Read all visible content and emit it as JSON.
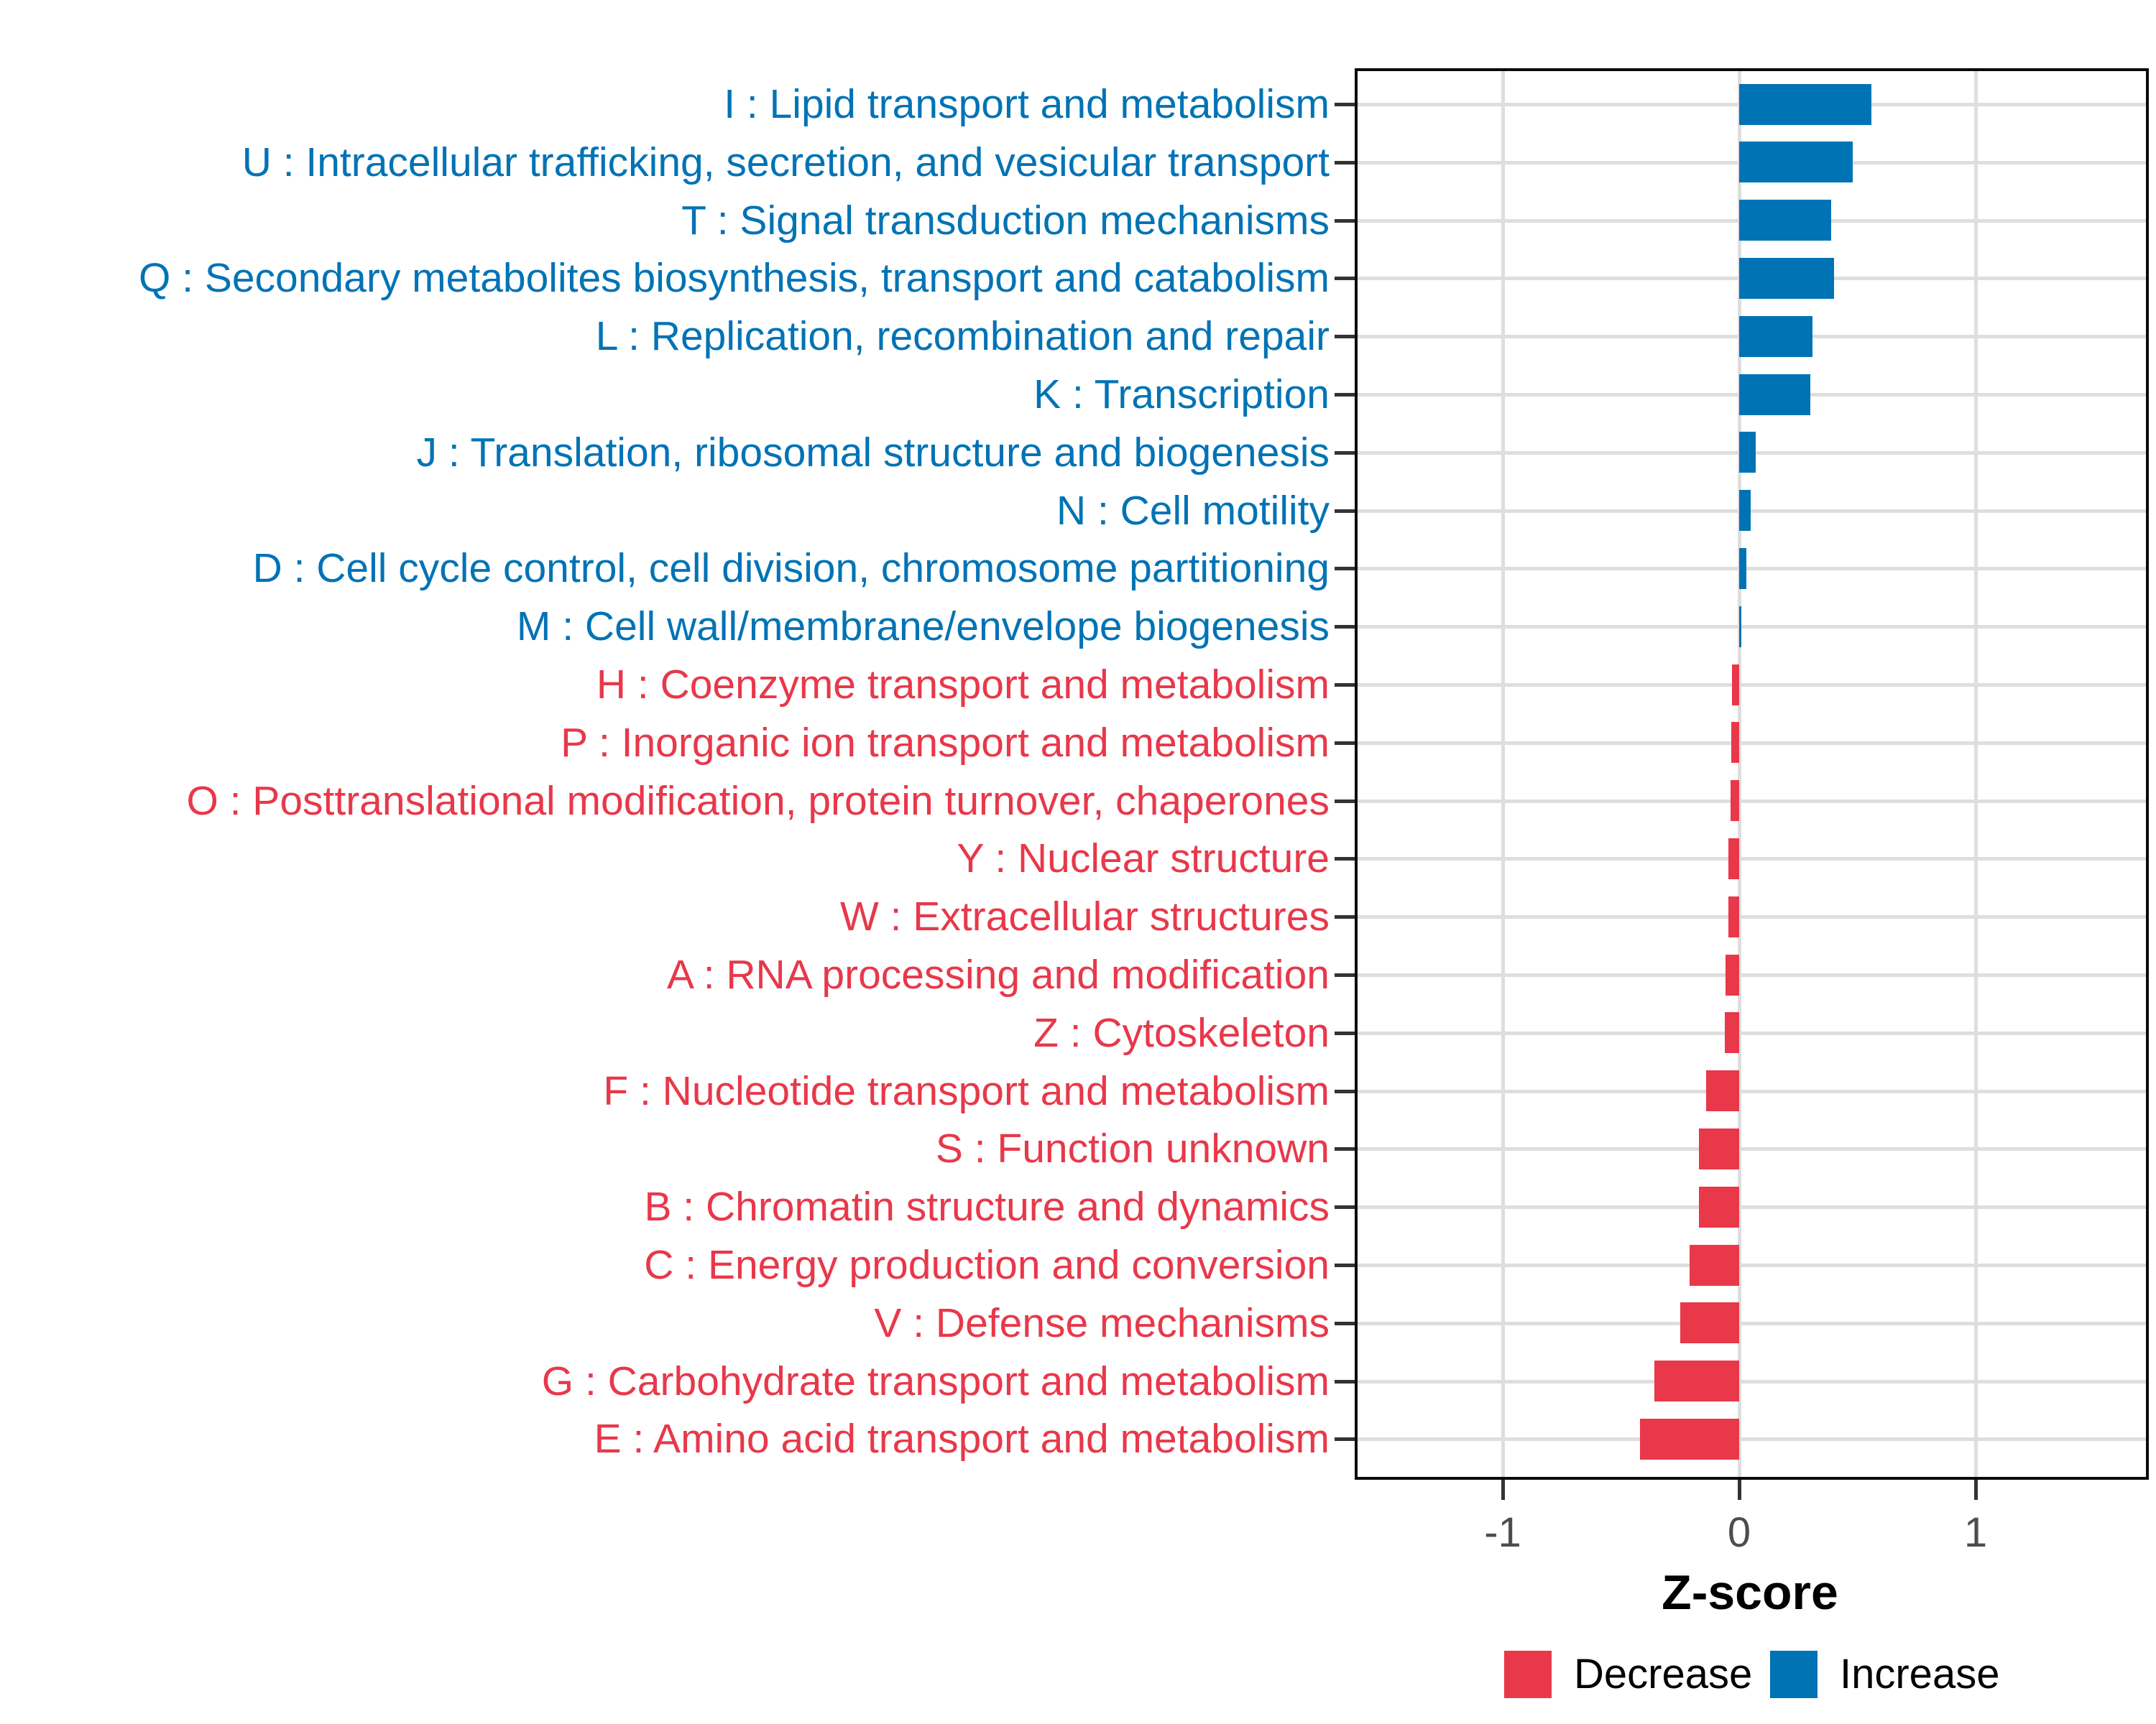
{
  "chart_data": {
    "type": "bar",
    "orientation": "horizontal",
    "title": "",
    "xlabel": "Z-score",
    "ylabel": "",
    "x_ticks": [
      "-1",
      "0",
      "1"
    ],
    "x_tick_values": [
      -1,
      0,
      1
    ],
    "xlim": [
      -1.63,
      1.72
    ],
    "grid": true,
    "legend_position": "bottom-right",
    "colors": {
      "increase": "#0073B5",
      "decrease": "#E8384A",
      "gridline": "#dedede",
      "axis_text": "#4d4d4d"
    },
    "legend": [
      {
        "label": "Decrease",
        "color": "#E8384A"
      },
      {
        "label": "Increase",
        "color": "#0073B5"
      }
    ],
    "rows": [
      {
        "code": "I",
        "label": "I : Lipid transport and metabolism",
        "value": 0.56,
        "direction": "increase"
      },
      {
        "code": "U",
        "label": "U : Intracellular trafficking, secretion, and vesicular transport",
        "value": 0.48,
        "direction": "increase"
      },
      {
        "code": "T",
        "label": "T : Signal transduction mechanisms",
        "value": 0.39,
        "direction": "increase"
      },
      {
        "code": "Q",
        "label": "Q : Secondary metabolites biosynthesis, transport and catabolism",
        "value": 0.4,
        "direction": "increase"
      },
      {
        "code": "L",
        "label": "L : Replication, recombination and repair",
        "value": 0.31,
        "direction": "increase"
      },
      {
        "code": "K",
        "label": "K : Transcription",
        "value": 0.3,
        "direction": "increase"
      },
      {
        "code": "J",
        "label": "J : Translation, ribosomal structure and biogenesis",
        "value": 0.07,
        "direction": "increase"
      },
      {
        "code": "N",
        "label": "N : Cell motility",
        "value": 0.05,
        "direction": "increase"
      },
      {
        "code": "D",
        "label": "D : Cell cycle control, cell division, chromosome partitioning",
        "value": 0.03,
        "direction": "increase"
      },
      {
        "code": "M",
        "label": "M : Cell wall/membrane/envelope biogenesis",
        "value": 0.01,
        "direction": "increase"
      },
      {
        "code": "H",
        "label": "H : Coenzyme transport and metabolism",
        "value": -0.03,
        "direction": "decrease"
      },
      {
        "code": "P",
        "label": "P : Inorganic ion transport and metabolism",
        "value": -0.034,
        "direction": "decrease"
      },
      {
        "code": "O",
        "label": "O : Posttranslational modification, protein turnover, chaperones",
        "value": -0.036,
        "direction": "decrease"
      },
      {
        "code": "Y",
        "label": "Y : Nuclear structure",
        "value": -0.045,
        "direction": "decrease"
      },
      {
        "code": "W",
        "label": "W : Extracellular structures",
        "value": -0.046,
        "direction": "decrease"
      },
      {
        "code": "A",
        "label": "A : RNA processing and modification",
        "value": -0.058,
        "direction": "decrease"
      },
      {
        "code": "Z",
        "label": "Z : Cytoskeleton",
        "value": -0.06,
        "direction": "decrease"
      },
      {
        "code": "F",
        "label": "F : Nucleotide transport and metabolism",
        "value": -0.14,
        "direction": "decrease"
      },
      {
        "code": "S",
        "label": "S : Function unknown",
        "value": -0.17,
        "direction": "decrease"
      },
      {
        "code": "B",
        "label": "B : Chromatin structure and dynamics",
        "value": -0.17,
        "direction": "decrease"
      },
      {
        "code": "C",
        "label": "C : Energy production and conversion",
        "value": -0.21,
        "direction": "decrease"
      },
      {
        "code": "V",
        "label": "V : Defense mechanisms",
        "value": -0.25,
        "direction": "decrease"
      },
      {
        "code": "G",
        "label": "G : Carbohydrate transport and metabolism",
        "value": -0.36,
        "direction": "decrease"
      },
      {
        "code": "E",
        "label": "E : Amino acid transport and metabolism",
        "value": -0.42,
        "direction": "decrease"
      }
    ]
  }
}
